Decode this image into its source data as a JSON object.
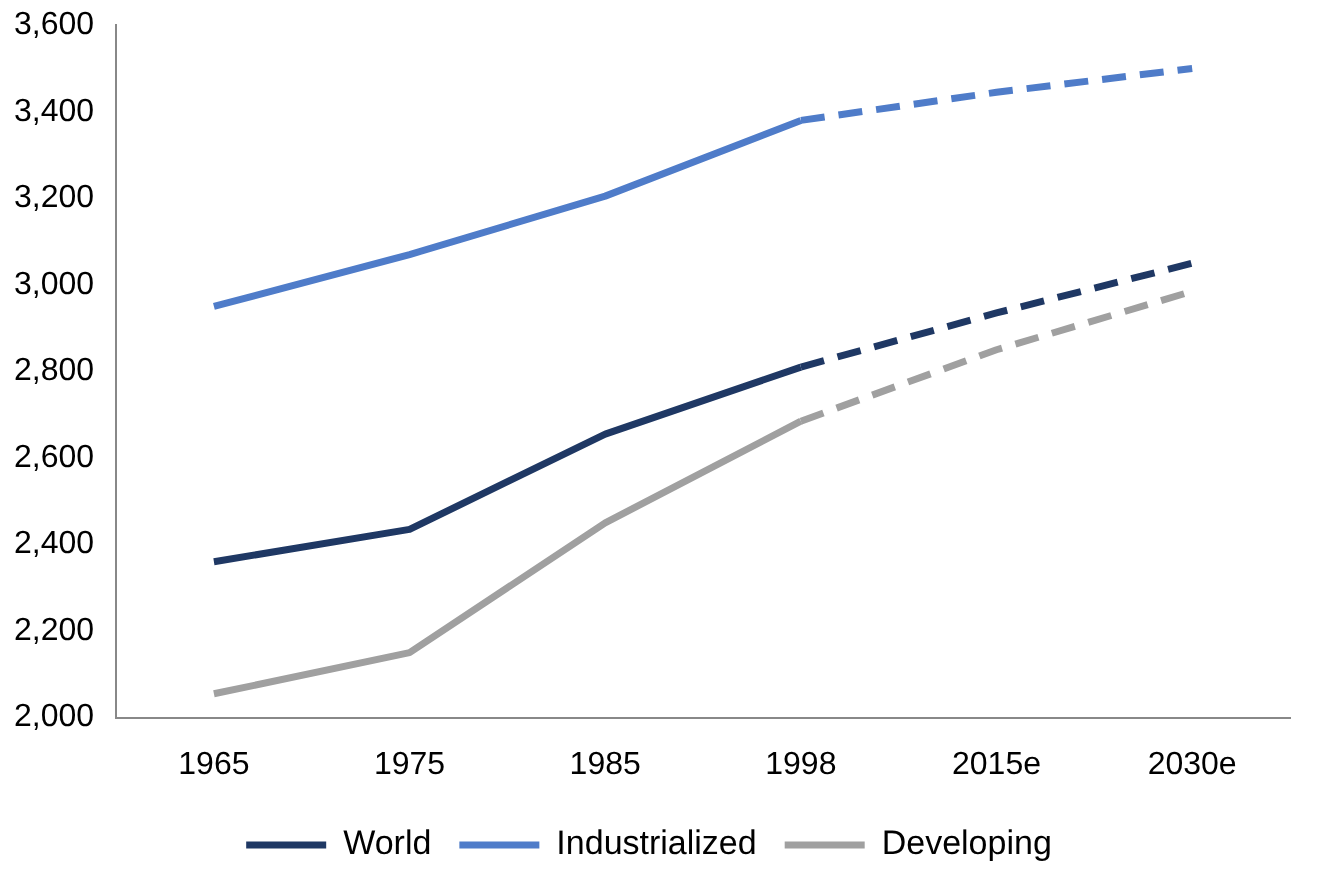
{
  "chart_data": {
    "type": "line",
    "categories": [
      "1965",
      "1975",
      "1985",
      "1998",
      "2015e",
      "2030e"
    ],
    "series": [
      {
        "name": "World",
        "color": "#1f3864",
        "line_style": "solid",
        "values": [
          2360,
          2435,
          2655,
          2810,
          null,
          null
        ]
      },
      {
        "name": "Industrialized",
        "color": "#4f7cc9",
        "line_style": "solid",
        "values": [
          2950,
          3070,
          3205,
          3380,
          null,
          null
        ]
      },
      {
        "name": "Developing",
        "color": "#a0a0a0",
        "line_style": "solid",
        "values": [
          2055,
          2150,
          2450,
          2685,
          null,
          null
        ]
      },
      {
        "color": "#1f3864",
        "line_style": "dashed",
        "values": [
          null,
          null,
          null,
          2810,
          2935,
          3050
        ]
      },
      {
        "color": "#4f7cc9",
        "line_style": "dashed",
        "values": [
          null,
          null,
          null,
          3380,
          3445,
          3500
        ]
      },
      {
        "color": "#a0a0a0",
        "line_style": "dashed",
        "values": [
          null,
          null,
          null,
          2685,
          2850,
          2985
        ]
      }
    ],
    "ylim": [
      2000,
      3600
    ],
    "yticks": [
      {
        "value": 2000,
        "label": "2,000"
      },
      {
        "value": 2200,
        "label": "2,200"
      },
      {
        "value": 2400,
        "label": "2,400"
      },
      {
        "value": 2600,
        "label": "2,600"
      },
      {
        "value": 2800,
        "label": "2,800"
      },
      {
        "value": 3000,
        "label": "3,000"
      },
      {
        "value": 3200,
        "label": "3,200"
      },
      {
        "value": 3400,
        "label": "3,400"
      },
      {
        "value": 3600,
        "label": "3,600"
      }
    ],
    "grid": false,
    "legend": "bottom",
    "marker": "none"
  }
}
